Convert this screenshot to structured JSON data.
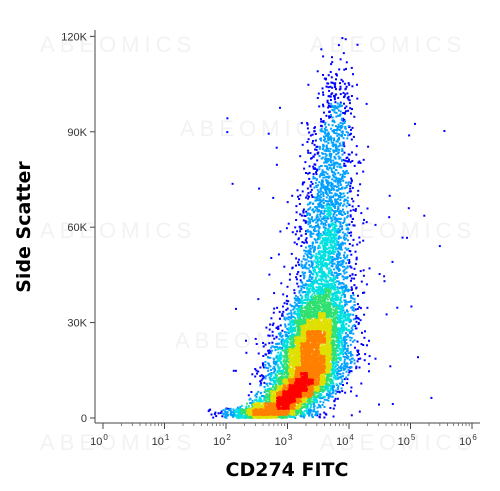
{
  "chart_data": {
    "type": "scatter",
    "subtype": "flow-cytometry-density-dot-plot",
    "xlabel": "CD274 FITC",
    "ylabel": "Side Scatter",
    "x_scale": "log",
    "y_scale": "linear",
    "xlim": [
      1,
      1000000
    ],
    "ylim": [
      0,
      122000
    ],
    "x_ticks": [
      {
        "value": 1,
        "base": "10",
        "exp": "0"
      },
      {
        "value": 10,
        "base": "10",
        "exp": "1"
      },
      {
        "value": 100,
        "base": "10",
        "exp": "2"
      },
      {
        "value": 1000,
        "base": "10",
        "exp": "3"
      },
      {
        "value": 10000,
        "base": "10",
        "exp": "4"
      },
      {
        "value": 100000,
        "base": "10",
        "exp": "5"
      },
      {
        "value": 1000000,
        "base": "10",
        "exp": "6"
      }
    ],
    "y_ticks": [
      {
        "value": 0,
        "label": "0"
      },
      {
        "value": 30000,
        "label": "30K"
      },
      {
        "value": 60000,
        "label": "60K"
      },
      {
        "value": 90000,
        "label": "90K"
      },
      {
        "value": 120000,
        "label": "120K"
      }
    ],
    "grid": false,
    "legend": "none",
    "watermark_text": "ABEOMICS",
    "density_colormap": [
      "#0000ff",
      "#00a0ff",
      "#00e0e0",
      "#30e070",
      "#e0e000",
      "#ff8000",
      "#ff0000"
    ],
    "populations": [
      {
        "log10_x_center": 3.35,
        "y_center": 22000,
        "log10_x_sd": 0.32,
        "y_sd": 9000,
        "relative_weight": 0.45
      },
      {
        "log10_x_center": 3.6,
        "y_center": 52000,
        "log10_x_sd": 0.22,
        "y_sd": 18000,
        "relative_weight": 0.2
      },
      {
        "log10_x_center": 3.05,
        "y_center": 7000,
        "log10_x_sd": 0.38,
        "y_sd": 4000,
        "relative_weight": 0.25
      },
      {
        "log10_x_center": 3.75,
        "y_center": 88000,
        "log10_x_sd": 0.15,
        "y_sd": 12000,
        "relative_weight": 0.05
      },
      {
        "log10_x_center": 2.6,
        "y_center": 4000,
        "log10_x_sd": 0.35,
        "y_sd": 2500,
        "relative_weight": 0.05
      }
    ]
  }
}
